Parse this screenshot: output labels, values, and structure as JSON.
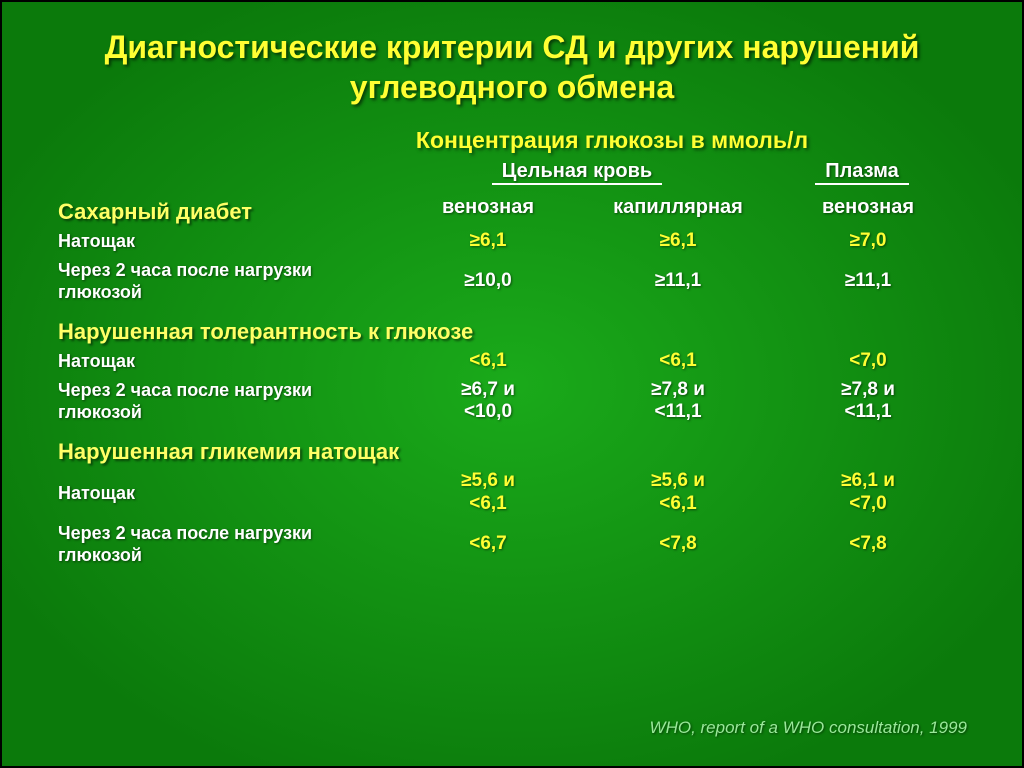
{
  "colors": {
    "bg_from": "#0b7a0b",
    "bg_to": "#1aaa1a",
    "title": "#ffff33",
    "subtitle": "#ffff33",
    "section": "#ffff66",
    "header_text": "#ffffff",
    "row_label": "#ffffff",
    "value_normal": "#ffffff",
    "value_highlight": "#ffff33",
    "footnote": "#9ae89a"
  },
  "fonts": {
    "title_size": 32,
    "subtitle_size": 23,
    "section_size": 22,
    "header_size": 20,
    "row_label_size": 18,
    "value_size": 19,
    "footnote_size": 17
  },
  "title": "Диагностические критерии СД и других нарушений углеводного обмена",
  "subtitle": "Концентрация глюкозы в ммоль/л",
  "group_headers": {
    "whole_blood": "Цельная кровь",
    "plasma": "Плазма"
  },
  "col_headers": {
    "venous": "венозная",
    "capillary": "капиллярная",
    "plasma_venous": "венозная"
  },
  "sections": [
    {
      "label": "Сахарный диабет",
      "rows": [
        {
          "label": "Натощак",
          "v1": "≥6,1",
          "v2": "≥6,1",
          "v3": "≥7,0",
          "highlight": true
        },
        {
          "label": "Через 2 часа после нагрузки глюкозой",
          "v1": "≥10,0",
          "v2": "≥11,1",
          "v3": "≥11,1",
          "highlight": false
        }
      ]
    },
    {
      "label": "Нарушенная толерантность к глюкозе",
      "rows": [
        {
          "label": "Натощак",
          "v1": "<6,1",
          "v2": "<6,1",
          "v3": "<7,0",
          "highlight": true
        },
        {
          "label": "Через 2 часа после нагрузки глюкозой",
          "v1": "≥6,7 и\n<10,0",
          "v2": "≥7,8  и\n<11,1",
          "v3": "≥7,8 и\n<11,1",
          "highlight": false
        }
      ]
    },
    {
      "label": "Нарушенная гликемия натощак",
      "rows": [
        {
          "label": "Натощак",
          "v1": "≥5,6  и\n<6,1",
          "v2": "≥5,6 и\n<6,1",
          "v3": "≥6,1 и\n<7,0",
          "highlight": true
        },
        {
          "label": "Через 2 часа после нагрузки глюкозой",
          "v1": "<6,7",
          "v2": "<7,8",
          "v3": "<7,8",
          "highlight": true
        }
      ]
    }
  ],
  "footnote": "WHO, report of a WHO consultation, 1999"
}
